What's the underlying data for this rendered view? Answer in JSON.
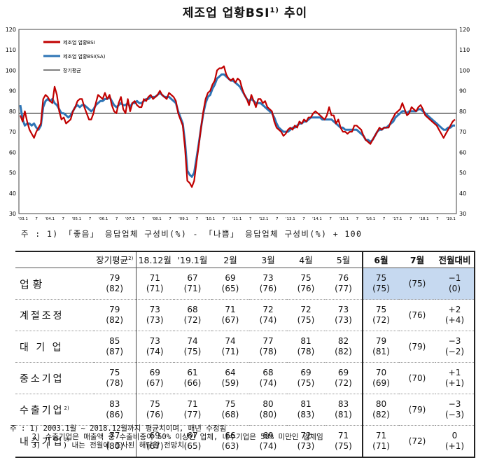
{
  "title": "제조업 업황BSI",
  "title_sup": "1)",
  "chart_data": {
    "type": "line",
    "title": "",
    "ylim": [
      30,
      120
    ],
    "yticks": [
      30,
      40,
      50,
      60,
      70,
      80,
      90,
      100,
      110,
      120
    ],
    "xticks": [
      "'03.1",
      "7",
      "'04.1",
      "7",
      "'05.1",
      "7",
      "'06.1",
      "7",
      "'07.1",
      "7",
      "'08.1",
      "7",
      "'09.1",
      "7",
      "'10.1",
      "7",
      "'11.1",
      "7",
      "'12.1",
      "7",
      "'13.1",
      "7",
      "'14.1",
      "7",
      "'15.1",
      "7",
      "'16.1",
      "7",
      "'17.1",
      "7",
      "'18.1",
      "7",
      "'19.1"
    ],
    "long_term_avg": 79,
    "legend": [
      "제조업 업황BSI",
      "제조업 업황BSI(SA)",
      "장기평균"
    ],
    "colors": {
      "raw": "#c00000",
      "sa": "#2e75b6",
      "avg": "#000000"
    },
    "series": [
      {
        "name": "제조업 업황BSI",
        "values": [
          78,
          75,
          80,
          75,
          71,
          69,
          67,
          70,
          72,
          74,
          86,
          88,
          87,
          85,
          84,
          92,
          88,
          80,
          76,
          77,
          74,
          75,
          76,
          80,
          82,
          85,
          86,
          86,
          82,
          79,
          76,
          76,
          79,
          84,
          88,
          87,
          86,
          89,
          86,
          88,
          83,
          80,
          79,
          84,
          87,
          81,
          79,
          86,
          80,
          84,
          85,
          83,
          82,
          82,
          86,
          85,
          87,
          88,
          86,
          87,
          88,
          90,
          88,
          87,
          86,
          89,
          88,
          87,
          85,
          79,
          76,
          73,
          62,
          46,
          45,
          43,
          46,
          55,
          63,
          72,
          80,
          86,
          89,
          90,
          93,
          95,
          100,
          101,
          101,
          102,
          98,
          96,
          95,
          96,
          94,
          96,
          95,
          91,
          88,
          86,
          83,
          88,
          85,
          82,
          86,
          86,
          84,
          85,
          82,
          81,
          80,
          75,
          72,
          71,
          70,
          68,
          69,
          71,
          72,
          71,
          73,
          72,
          75,
          74,
          76,
          75,
          77,
          77,
          79,
          80,
          79,
          78,
          77,
          76,
          78,
          82,
          78,
          78,
          74,
          76,
          72,
          70,
          70,
          69,
          70,
          70,
          73,
          73,
          72,
          71,
          68,
          66,
          65,
          64,
          66,
          68,
          70,
          72,
          71,
          72,
          72,
          72,
          75,
          77,
          79,
          80,
          81,
          84,
          81,
          78,
          79,
          82,
          81,
          80,
          82,
          83,
          81,
          78,
          77,
          76,
          75,
          74,
          73,
          71,
          69,
          67,
          69,
          71,
          73,
          75,
          76
        ]
      },
      {
        "name": "제조업 업황BSI(SA)",
        "values": [
          83,
          76,
          73,
          74,
          74,
          73,
          74,
          72,
          71,
          73,
          82,
          85,
          86,
          85,
          86,
          84,
          83,
          81,
          79,
          79,
          78,
          77,
          78,
          80,
          82,
          83,
          82,
          83,
          83,
          82,
          81,
          80,
          81,
          83,
          84,
          85,
          85,
          86,
          86,
          87,
          85,
          83,
          82,
          83,
          84,
          83,
          83,
          84,
          82,
          84,
          84,
          85,
          84,
          84,
          85,
          86,
          86,
          87,
          87,
          87,
          88,
          89,
          88,
          87,
          87,
          87,
          86,
          85,
          84,
          80,
          77,
          74,
          65,
          51,
          49,
          48,
          50,
          57,
          64,
          72,
          79,
          84,
          87,
          88,
          91,
          93,
          96,
          97,
          98,
          98,
          97,
          96,
          95,
          95,
          94,
          93,
          92,
          90,
          88,
          86,
          85,
          86,
          85,
          84,
          84,
          84,
          83,
          82,
          81,
          80,
          79,
          77,
          74,
          72,
          71,
          70,
          70,
          70,
          71,
          72,
          72,
          73,
          74,
          74,
          75,
          75,
          76,
          77,
          77,
          77,
          77,
          77,
          76,
          76,
          76,
          76,
          76,
          75,
          74,
          73,
          72,
          72,
          71,
          71,
          71,
          71,
          71,
          71,
          70,
          69,
          68,
          66,
          66,
          65,
          66,
          68,
          70,
          71,
          71,
          72,
          72,
          73,
          74,
          75,
          77,
          78,
          79,
          80,
          80,
          79,
          80,
          80,
          80,
          80,
          81,
          81,
          80,
          79,
          78,
          77,
          76,
          75,
          74,
          73,
          72,
          71,
          71,
          72,
          72,
          73,
          73
        ]
      }
    ]
  },
  "chart_legend": {
    "raw": "제조업 업황BSI",
    "sa": "제조업 업황BSI(SA)",
    "avg": "장기평균"
  },
  "note_top": "주 : 1) 「좋음」 응답업체 구성비(%) - 「나쁨」 응답업체 구성비(%) + 100",
  "table": {
    "headers": {
      "avg": "장기평균",
      "avg_sup": "2)",
      "c1": "18.12월",
      "c2": "'19.1월",
      "c3": "2월",
      "c4": "3월",
      "c5": "4월",
      "c6": "5월",
      "c7": "6월",
      "c8": "7월",
      "c9": "전월대비"
    },
    "rows": [
      {
        "label": "업       황",
        "sup": "",
        "main": true,
        "v": [
          "79",
          "71",
          "67",
          "69",
          "73",
          "75",
          "76",
          "75",
          "",
          "−1"
        ],
        "p": [
          "(82)",
          "(71)",
          "(71)",
          "(65)",
          "(76)",
          "(76)",
          "(77)",
          "(75)",
          "(75)",
          "(0)"
        ]
      },
      {
        "label": "계절조정",
        "sup": "",
        "v": [
          "79",
          "73",
          "68",
          "71",
          "72",
          "72",
          "73",
          "75",
          "",
          "+2"
        ],
        "p": [
          "(82)",
          "(73)",
          "(72)",
          "(67)",
          "(74)",
          "(75)",
          "(73)",
          "(72)",
          "(76)",
          "(+4)"
        ]
      },
      {
        "label": "대 기 업",
        "sup": "",
        "v": [
          "85",
          "73",
          "74",
          "74",
          "77",
          "81",
          "82",
          "79",
          "",
          "−3"
        ],
        "p": [
          "(87)",
          "(74)",
          "(75)",
          "(71)",
          "(78)",
          "(78)",
          "(82)",
          "(81)",
          "(79)",
          "(−2)"
        ]
      },
      {
        "label": "중소기업",
        "sup": "",
        "v": [
          "75",
          "69",
          "61",
          "64",
          "68",
          "69",
          "69",
          "70",
          "",
          "+1"
        ],
        "p": [
          "(78)",
          "(67)",
          "(66)",
          "(59)",
          "(74)",
          "(75)",
          "(72)",
          "(69)",
          "(70)",
          "(+1)"
        ]
      },
      {
        "label": "수출기업",
        "sup": "2)",
        "v": [
          "83",
          "75",
          "71",
          "75",
          "80",
          "81",
          "83",
          "80",
          "",
          "−3"
        ],
        "p": [
          "(86)",
          "(76)",
          "(77)",
          "(68)",
          "(80)",
          "(83)",
          "(81)",
          "(82)",
          "(79)",
          "(−3)"
        ]
      },
      {
        "label": "내수기업",
        "sup": "2)",
        "v": [
          "77",
          "69",
          "67",
          "66",
          "69",
          "72",
          "71",
          "71",
          "",
          "0"
        ],
        "p": [
          "(80)",
          "(67)",
          "(65)",
          "(63)",
          "(74)",
          "(73)",
          "(75)",
          "(71)",
          "(72)",
          "(+1)"
        ]
      }
    ]
  },
  "notes": [
    "주 : 1) 2003.1월 ~ 2018.12월까지 평균치이며, 매년 수정됨",
    "     2) 수출기업은 매출액 중 수출비중이 50% 이상인 업체, 내수기업은 50% 미만인 업체임",
    "     3) (   ) 내는 전월에 조사된 해당월 전망치"
  ]
}
